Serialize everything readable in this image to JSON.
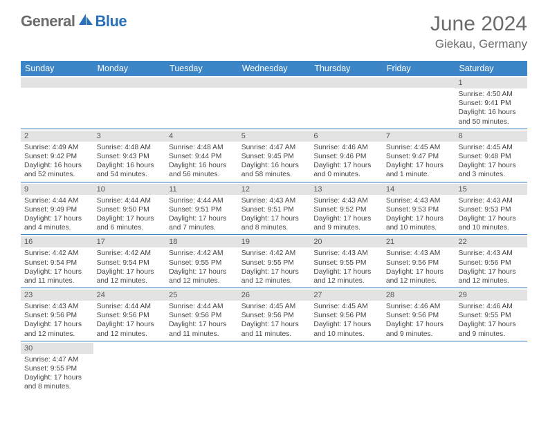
{
  "brand": {
    "word1": "General",
    "word2": "Blue"
  },
  "title": "June 2024",
  "location": "Giekau, Germany",
  "colors": {
    "header_bg": "#3c86c8",
    "row_divider": "#2a70b8",
    "daybar_bg": "#e3e3e3",
    "text_gray": "#6b6b6b"
  },
  "dow": [
    "Sunday",
    "Monday",
    "Tuesday",
    "Wednesday",
    "Thursday",
    "Friday",
    "Saturday"
  ],
  "weeks": [
    [
      {
        "n": "",
        "sr": "",
        "ss": "",
        "dl": ""
      },
      {
        "n": "",
        "sr": "",
        "ss": "",
        "dl": ""
      },
      {
        "n": "",
        "sr": "",
        "ss": "",
        "dl": ""
      },
      {
        "n": "",
        "sr": "",
        "ss": "",
        "dl": ""
      },
      {
        "n": "",
        "sr": "",
        "ss": "",
        "dl": ""
      },
      {
        "n": "",
        "sr": "",
        "ss": "",
        "dl": ""
      },
      {
        "n": "1",
        "sr": "Sunrise: 4:50 AM",
        "ss": "Sunset: 9:41 PM",
        "dl": "Daylight: 16 hours and 50 minutes."
      }
    ],
    [
      {
        "n": "2",
        "sr": "Sunrise: 4:49 AM",
        "ss": "Sunset: 9:42 PM",
        "dl": "Daylight: 16 hours and 52 minutes."
      },
      {
        "n": "3",
        "sr": "Sunrise: 4:48 AM",
        "ss": "Sunset: 9:43 PM",
        "dl": "Daylight: 16 hours and 54 minutes."
      },
      {
        "n": "4",
        "sr": "Sunrise: 4:48 AM",
        "ss": "Sunset: 9:44 PM",
        "dl": "Daylight: 16 hours and 56 minutes."
      },
      {
        "n": "5",
        "sr": "Sunrise: 4:47 AM",
        "ss": "Sunset: 9:45 PM",
        "dl": "Daylight: 16 hours and 58 minutes."
      },
      {
        "n": "6",
        "sr": "Sunrise: 4:46 AM",
        "ss": "Sunset: 9:46 PM",
        "dl": "Daylight: 17 hours and 0 minutes."
      },
      {
        "n": "7",
        "sr": "Sunrise: 4:45 AM",
        "ss": "Sunset: 9:47 PM",
        "dl": "Daylight: 17 hours and 1 minute."
      },
      {
        "n": "8",
        "sr": "Sunrise: 4:45 AM",
        "ss": "Sunset: 9:48 PM",
        "dl": "Daylight: 17 hours and 3 minutes."
      }
    ],
    [
      {
        "n": "9",
        "sr": "Sunrise: 4:44 AM",
        "ss": "Sunset: 9:49 PM",
        "dl": "Daylight: 17 hours and 4 minutes."
      },
      {
        "n": "10",
        "sr": "Sunrise: 4:44 AM",
        "ss": "Sunset: 9:50 PM",
        "dl": "Daylight: 17 hours and 6 minutes."
      },
      {
        "n": "11",
        "sr": "Sunrise: 4:44 AM",
        "ss": "Sunset: 9:51 PM",
        "dl": "Daylight: 17 hours and 7 minutes."
      },
      {
        "n": "12",
        "sr": "Sunrise: 4:43 AM",
        "ss": "Sunset: 9:51 PM",
        "dl": "Daylight: 17 hours and 8 minutes."
      },
      {
        "n": "13",
        "sr": "Sunrise: 4:43 AM",
        "ss": "Sunset: 9:52 PM",
        "dl": "Daylight: 17 hours and 9 minutes."
      },
      {
        "n": "14",
        "sr": "Sunrise: 4:43 AM",
        "ss": "Sunset: 9:53 PM",
        "dl": "Daylight: 17 hours and 10 minutes."
      },
      {
        "n": "15",
        "sr": "Sunrise: 4:43 AM",
        "ss": "Sunset: 9:53 PM",
        "dl": "Daylight: 17 hours and 10 minutes."
      }
    ],
    [
      {
        "n": "16",
        "sr": "Sunrise: 4:42 AM",
        "ss": "Sunset: 9:54 PM",
        "dl": "Daylight: 17 hours and 11 minutes."
      },
      {
        "n": "17",
        "sr": "Sunrise: 4:42 AM",
        "ss": "Sunset: 9:54 PM",
        "dl": "Daylight: 17 hours and 12 minutes."
      },
      {
        "n": "18",
        "sr": "Sunrise: 4:42 AM",
        "ss": "Sunset: 9:55 PM",
        "dl": "Daylight: 17 hours and 12 minutes."
      },
      {
        "n": "19",
        "sr": "Sunrise: 4:42 AM",
        "ss": "Sunset: 9:55 PM",
        "dl": "Daylight: 17 hours and 12 minutes."
      },
      {
        "n": "20",
        "sr": "Sunrise: 4:43 AM",
        "ss": "Sunset: 9:55 PM",
        "dl": "Daylight: 17 hours and 12 minutes."
      },
      {
        "n": "21",
        "sr": "Sunrise: 4:43 AM",
        "ss": "Sunset: 9:56 PM",
        "dl": "Daylight: 17 hours and 12 minutes."
      },
      {
        "n": "22",
        "sr": "Sunrise: 4:43 AM",
        "ss": "Sunset: 9:56 PM",
        "dl": "Daylight: 17 hours and 12 minutes."
      }
    ],
    [
      {
        "n": "23",
        "sr": "Sunrise: 4:43 AM",
        "ss": "Sunset: 9:56 PM",
        "dl": "Daylight: 17 hours and 12 minutes."
      },
      {
        "n": "24",
        "sr": "Sunrise: 4:44 AM",
        "ss": "Sunset: 9:56 PM",
        "dl": "Daylight: 17 hours and 12 minutes."
      },
      {
        "n": "25",
        "sr": "Sunrise: 4:44 AM",
        "ss": "Sunset: 9:56 PM",
        "dl": "Daylight: 17 hours and 11 minutes."
      },
      {
        "n": "26",
        "sr": "Sunrise: 4:45 AM",
        "ss": "Sunset: 9:56 PM",
        "dl": "Daylight: 17 hours and 11 minutes."
      },
      {
        "n": "27",
        "sr": "Sunrise: 4:45 AM",
        "ss": "Sunset: 9:56 PM",
        "dl": "Daylight: 17 hours and 10 minutes."
      },
      {
        "n": "28",
        "sr": "Sunrise: 4:46 AM",
        "ss": "Sunset: 9:56 PM",
        "dl": "Daylight: 17 hours and 9 minutes."
      },
      {
        "n": "29",
        "sr": "Sunrise: 4:46 AM",
        "ss": "Sunset: 9:55 PM",
        "dl": "Daylight: 17 hours and 9 minutes."
      }
    ],
    [
      {
        "n": "30",
        "sr": "Sunrise: 4:47 AM",
        "ss": "Sunset: 9:55 PM",
        "dl": "Daylight: 17 hours and 8 minutes."
      },
      {
        "n": "",
        "sr": "",
        "ss": "",
        "dl": ""
      },
      {
        "n": "",
        "sr": "",
        "ss": "",
        "dl": ""
      },
      {
        "n": "",
        "sr": "",
        "ss": "",
        "dl": ""
      },
      {
        "n": "",
        "sr": "",
        "ss": "",
        "dl": ""
      },
      {
        "n": "",
        "sr": "",
        "ss": "",
        "dl": ""
      },
      {
        "n": "",
        "sr": "",
        "ss": "",
        "dl": ""
      }
    ]
  ]
}
